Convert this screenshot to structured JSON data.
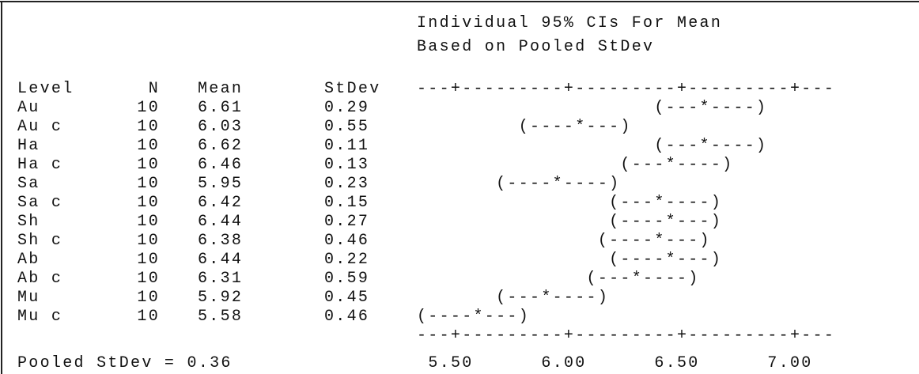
{
  "header": {
    "line1": "Individual 95% CIs For Mean",
    "line2": "Based on Pooled StDev"
  },
  "table": {
    "columns": [
      "Level",
      "N",
      "Mean",
      "StDev"
    ],
    "axis_line": "---+---------+---------+---------+---",
    "rows": [
      [
        "Au",
        "10",
        "6.61",
        "0.29",
        "                     (---*----)"
      ],
      [
        "Au c",
        "10",
        "6.03",
        "0.55",
        "         (----*---)"
      ],
      [
        "Ha",
        "10",
        "6.62",
        "0.11",
        "                     (---*----)"
      ],
      [
        "Ha c",
        "10",
        "6.46",
        "0.13",
        "                  (---*----)"
      ],
      [
        "Sa",
        "10",
        "5.95",
        "0.23",
        "       (----*----)"
      ],
      [
        "Sa c",
        "10",
        "6.42",
        "0.15",
        "                 (---*----)"
      ],
      [
        "Sh",
        "10",
        "6.44",
        "0.27",
        "                 (----*---)"
      ],
      [
        "Sh c",
        "10",
        "6.38",
        "0.46",
        "                (----*---)"
      ],
      [
        "Ab",
        "10",
        "6.44",
        "0.22",
        "                 (----*---)"
      ],
      [
        "Ab c",
        "10",
        "6.31",
        "0.59",
        "               (---*----)"
      ],
      [
        "Mu",
        "10",
        "5.92",
        "0.45",
        "       (---*----)"
      ],
      [
        "Mu c",
        "10",
        "5.58",
        "0.46",
        "(----*---)"
      ]
    ],
    "axis_labels": [
      "5.50",
      "6.00",
      "6.50",
      "7.00"
    ]
  },
  "footer": {
    "pooled": "Pooled StDev = 0.36"
  }
}
